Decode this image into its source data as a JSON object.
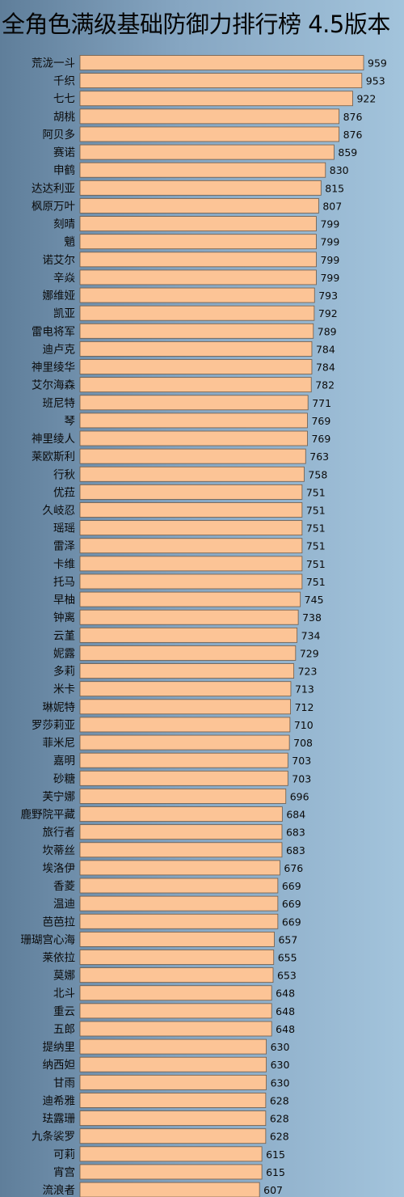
{
  "chart_data": {
    "type": "bar",
    "orientation": "horizontal",
    "title": "全角色满级基础防御力排行榜  4.5版本",
    "categories": [
      "荒泷一斗",
      "千织",
      "七七",
      "胡桃",
      "阿贝多",
      "赛诺",
      "申鹤",
      "达达利亚",
      "枫原万叶",
      "刻晴",
      "魈",
      "诺艾尔",
      "辛焱",
      "娜维娅",
      "凯亚",
      "雷电将军",
      "迪卢克",
      "神里绫华",
      "艾尔海森",
      "班尼特",
      "琴",
      "神里绫人",
      "莱欧斯利",
      "行秋",
      "优菈",
      "久岐忍",
      "瑶瑶",
      "雷泽",
      "卡维",
      "托马",
      "早柚",
      "钟离",
      "云堇",
      "妮露",
      "多莉",
      "米卡",
      "琳妮特",
      "罗莎莉亚",
      "菲米尼",
      "嘉明",
      "砂糖",
      "芙宁娜",
      "鹿野院平藏",
      "旅行者",
      "坎蒂丝",
      "埃洛伊",
      "香菱",
      "温迪",
      "芭芭拉",
      "珊瑚宫心海",
      "莱依拉",
      "莫娜",
      "北斗",
      "重云",
      "五郎",
      "提纳里",
      "纳西妲",
      "甘雨",
      "迪希雅",
      "珐露珊",
      "九条裟罗",
      "可莉",
      "宵宫",
      "流浪者"
    ],
    "values": [
      959,
      953,
      922,
      876,
      876,
      859,
      830,
      815,
      807,
      799,
      799,
      799,
      799,
      793,
      792,
      789,
      784,
      784,
      782,
      771,
      769,
      769,
      763,
      758,
      751,
      751,
      751,
      751,
      751,
      751,
      745,
      738,
      734,
      729,
      723,
      713,
      712,
      710,
      708,
      703,
      703,
      696,
      684,
      683,
      683,
      676,
      669,
      669,
      669,
      657,
      655,
      653,
      648,
      648,
      648,
      630,
      630,
      630,
      628,
      628,
      628,
      615,
      615,
      607
    ],
    "bar_color": "#fcc496",
    "bar_stroke": "#6e5a48"
  }
}
